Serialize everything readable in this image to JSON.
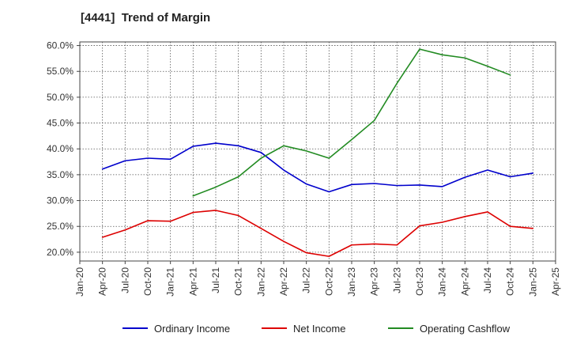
{
  "chart_data": {
    "type": "line",
    "title": "[4441]  Trend of Margin",
    "xlabel": "",
    "ylabel": "",
    "x_ticks": [
      "Jan-20",
      "Apr-20",
      "Jul-20",
      "Oct-20",
      "Jan-21",
      "Apr-21",
      "Jul-21",
      "Oct-21",
      "Jan-22",
      "Apr-22",
      "Jul-22",
      "Oct-22",
      "Jan-23",
      "Apr-23",
      "Jul-23",
      "Oct-23",
      "Jan-24",
      "Apr-24",
      "Jul-24",
      "Oct-24",
      "Jan-25",
      "Apr-25"
    ],
    "y_ticks": [
      20,
      25,
      30,
      35,
      40,
      45,
      50,
      55,
      60
    ],
    "y_tick_labels": [
      "20.0%",
      "25.0%",
      "30.0%",
      "35.0%",
      "40.0%",
      "45.0%",
      "50.0%",
      "55.0%",
      "60.0%"
    ],
    "ylim": [
      18.3,
      60.7
    ],
    "grid": true,
    "legend_position": "bottom",
    "series": [
      {
        "name": "Ordinary Income",
        "color": "#0000cc",
        "points": [
          [
            "Apr-20",
            36.1
          ],
          [
            "Jul-20",
            37.7
          ],
          [
            "Oct-20",
            38.2
          ],
          [
            "Jan-21",
            38.0
          ],
          [
            "Apr-21",
            40.5
          ],
          [
            "Jul-21",
            41.1
          ],
          [
            "Oct-21",
            40.6
          ],
          [
            "Jan-22",
            39.3
          ],
          [
            "Apr-22",
            35.9
          ],
          [
            "Jul-22",
            33.2
          ],
          [
            "Oct-22",
            31.7
          ],
          [
            "Jan-23",
            33.1
          ],
          [
            "Apr-23",
            33.3
          ],
          [
            "Jul-23",
            32.9
          ],
          [
            "Oct-23",
            33.0
          ],
          [
            "Jan-24",
            32.7
          ],
          [
            "Apr-24",
            34.5
          ],
          [
            "Jul-24",
            35.9
          ],
          [
            "Oct-24",
            34.6
          ],
          [
            "Jan-25",
            35.3
          ]
        ]
      },
      {
        "name": "Net Income",
        "color": "#dd0000",
        "points": [
          [
            "Apr-20",
            22.9
          ],
          [
            "Jul-20",
            24.3
          ],
          [
            "Oct-20",
            26.1
          ],
          [
            "Jan-21",
            26.0
          ],
          [
            "Apr-21",
            27.7
          ],
          [
            "Jul-21",
            28.1
          ],
          [
            "Oct-21",
            27.1
          ],
          [
            "Jan-22",
            24.6
          ],
          [
            "Apr-22",
            22.1
          ],
          [
            "Jul-22",
            19.9
          ],
          [
            "Oct-22",
            19.2
          ],
          [
            "Jan-23",
            21.4
          ],
          [
            "Apr-23",
            21.6
          ],
          [
            "Jul-23",
            21.4
          ],
          [
            "Oct-23",
            25.1
          ],
          [
            "Jan-24",
            25.8
          ],
          [
            "Apr-24",
            26.9
          ],
          [
            "Jul-24",
            27.8
          ],
          [
            "Oct-24",
            25.0
          ],
          [
            "Jan-25",
            24.6
          ]
        ]
      },
      {
        "name": "Operating Cashflow",
        "color": "#228b22",
        "points": [
          [
            "Apr-21",
            30.9
          ],
          [
            "Jul-21",
            32.6
          ],
          [
            "Oct-21",
            34.6
          ],
          [
            "Jan-22",
            38.2
          ],
          [
            "Apr-22",
            40.6
          ],
          [
            "Jul-22",
            39.6
          ],
          [
            "Oct-22",
            38.2
          ],
          [
            "Jan-23",
            41.8
          ],
          [
            "Apr-23",
            45.5
          ],
          [
            "Jul-23",
            52.7
          ],
          [
            "Oct-23",
            59.3
          ],
          [
            "Jan-24",
            58.2
          ],
          [
            "Apr-24",
            57.6
          ],
          [
            "Jul-24",
            56.0
          ],
          [
            "Oct-24",
            54.3
          ]
        ]
      }
    ]
  }
}
